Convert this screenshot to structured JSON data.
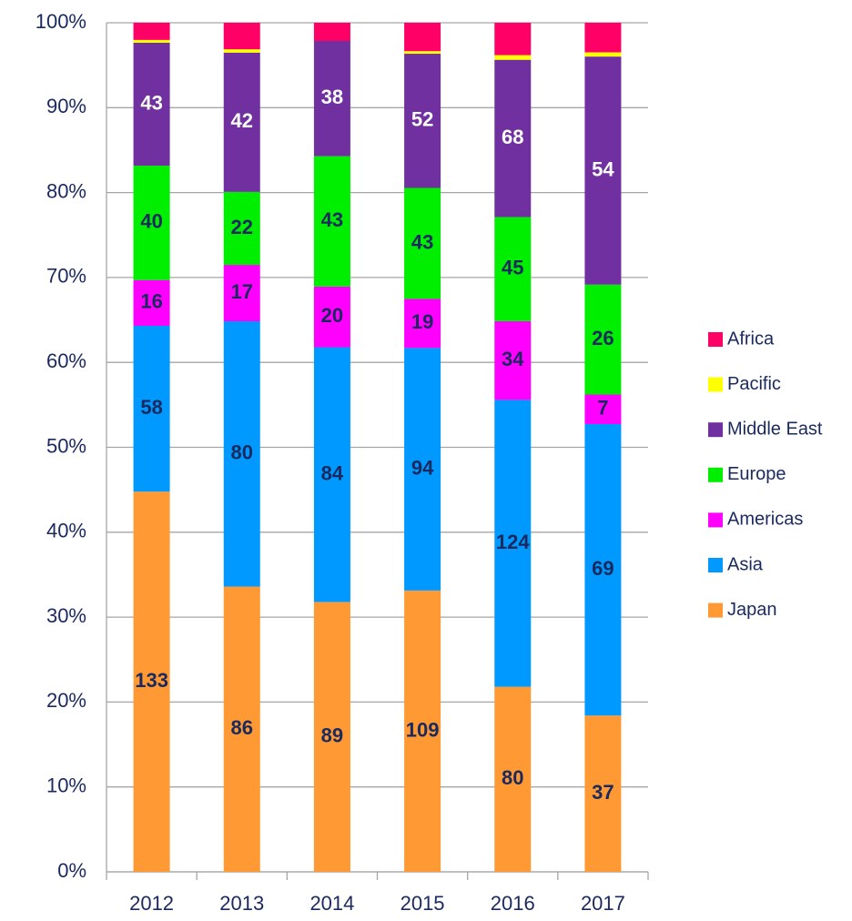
{
  "chart_data": {
    "type": "bar",
    "stacking": "percent",
    "categories": [
      "2012",
      "2013",
      "2014",
      "2015",
      "2016",
      "2017"
    ],
    "series": [
      {
        "name": "Japan",
        "color": "#ff9933",
        "label_color": "#1a2a5e",
        "show_labels": true,
        "values": [
          133,
          86,
          89,
          109,
          80,
          37
        ]
      },
      {
        "name": "Asia",
        "color": "#0099ff",
        "label_color": "#1a2a5e",
        "show_labels": true,
        "values": [
          58,
          80,
          84,
          94,
          124,
          69
        ]
      },
      {
        "name": "Americas",
        "color": "#ff00ff",
        "label_color": "#1a2a5e",
        "show_labels": true,
        "values": [
          16,
          17,
          20,
          19,
          34,
          7
        ]
      },
      {
        "name": "Europe",
        "color": "#00ee00",
        "label_color": "#1a2a5e",
        "show_labels": true,
        "values": [
          40,
          22,
          43,
          43,
          45,
          26
        ]
      },
      {
        "name": "Middle East",
        "color": "#7030a0",
        "label_color": "#ffffff",
        "show_labels": true,
        "values": [
          43,
          42,
          38,
          52,
          68,
          54
        ]
      },
      {
        "name": "Pacific",
        "color": "#ffff00",
        "label_color": "#1a2a5e",
        "show_labels": false,
        "values": [
          1,
          1,
          0,
          1,
          2,
          1
        ]
      },
      {
        "name": "Africa",
        "color": "#ff0066",
        "label_color": "#1a2a5e",
        "show_labels": false,
        "values": [
          6,
          8,
          6,
          11,
          14,
          7
        ]
      }
    ],
    "ylim": [
      0,
      100
    ],
    "yticks": [
      {
        "value": 0,
        "label": "0%"
      },
      {
        "value": 10,
        "label": "10%"
      },
      {
        "value": 20,
        "label": "20%"
      },
      {
        "value": 30,
        "label": "30%"
      },
      {
        "value": 40,
        "label": "40%"
      },
      {
        "value": 50,
        "label": "50%"
      },
      {
        "value": 60,
        "label": "60%"
      },
      {
        "value": 70,
        "label": "70%"
      },
      {
        "value": 80,
        "label": "80%"
      },
      {
        "value": 90,
        "label": "90%"
      },
      {
        "value": 100,
        "label": "100%"
      }
    ],
    "grid": true,
    "legend": "right"
  }
}
